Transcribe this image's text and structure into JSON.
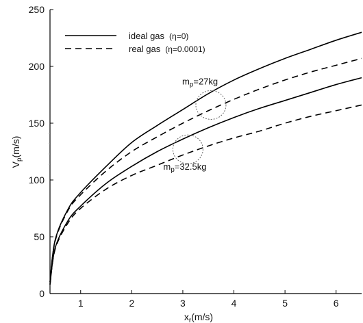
{
  "chart_data": {
    "type": "line",
    "xlabel": "x",
    "xlabel_sub": "r",
    "xlabel_unit": "(m/s)",
    "ylabel": "V",
    "ylabel_sub": "p",
    "ylabel_unit": "(m/s)",
    "xlim": [
      0.4,
      6.5
    ],
    "ylim": [
      0,
      250
    ],
    "xticks": [
      1,
      2,
      3,
      4,
      5,
      6
    ],
    "yticks": [
      0,
      50,
      100,
      150,
      200,
      250
    ],
    "grid": false,
    "legend_position": "top-left",
    "legend": [
      {
        "label": "ideal gas",
        "paren": "(η=0)",
        "style": "solid"
      },
      {
        "label": "real gas",
        "paren": "(η=0.0001)",
        "style": "dashed"
      }
    ],
    "series": [
      {
        "style": "solid",
        "group": "m_p=27kg",
        "x": [
          0.4,
          0.5,
          0.75,
          1.0,
          1.5,
          2.0,
          2.5,
          3.0,
          3.5,
          4.0,
          4.5,
          5.0,
          5.5,
          6.0,
          6.5
        ],
        "y": [
          10,
          47,
          74,
          89,
          112,
          133,
          148,
          162,
          176,
          188,
          198,
          207,
          215,
          223,
          230
        ]
      },
      {
        "style": "dashed",
        "group": "m_p=27kg",
        "x": [
          0.4,
          0.5,
          0.75,
          1.0,
          1.5,
          2.0,
          2.5,
          3.0,
          3.5,
          4.0,
          4.5,
          5.0,
          5.5,
          6.0,
          6.5
        ],
        "y": [
          10,
          46,
          73,
          87,
          108,
          125,
          138,
          150,
          161,
          171,
          180,
          188,
          195,
          201,
          207
        ]
      },
      {
        "style": "solid",
        "group": "m_p=32.5kg",
        "x": [
          0.4,
          0.5,
          0.75,
          1.0,
          1.5,
          2.0,
          2.5,
          3.0,
          3.5,
          4.0,
          4.5,
          5.0,
          5.5,
          6.0,
          6.5
        ],
        "y": [
          8,
          40,
          64,
          77,
          97,
          112,
          125,
          136,
          146,
          155,
          163,
          170,
          177,
          184,
          190
        ]
      },
      {
        "style": "dashed",
        "group": "m_p=32.5kg",
        "x": [
          0.4,
          0.5,
          0.75,
          1.0,
          1.5,
          2.0,
          2.5,
          3.0,
          3.5,
          4.0,
          4.5,
          5.0,
          5.5,
          6.0,
          6.5
        ],
        "y": [
          8,
          39,
          62,
          75,
          92,
          104,
          113,
          122,
          130,
          137,
          143,
          150,
          156,
          161,
          166
        ]
      }
    ],
    "annotations": [
      {
        "text_main": "m",
        "text_sub": "p",
        "text_rest": "=27kg",
        "x": 3.55,
        "y": 166
      },
      {
        "text_main": "m",
        "text_sub": "p",
        "text_rest": "=32.5kg",
        "x": 3.1,
        "y": 127
      }
    ]
  }
}
